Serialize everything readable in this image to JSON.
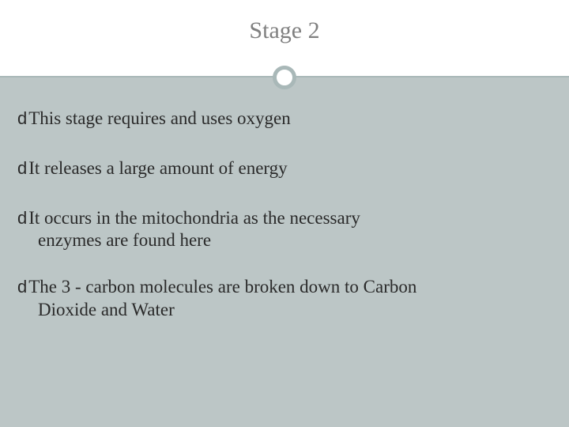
{
  "slide": {
    "title": "Stage 2",
    "title_color": "#808080",
    "title_fontsize": 30,
    "accent_color": "#a9b8b8",
    "header_bg": "#ffffff",
    "content_bg": "#bcc6c6",
    "text_color": "#2a2a2a",
    "body_fontsize": 23,
    "bullet_glyph": "d",
    "bullets": [
      {
        "text": "This stage requires and uses oxygen",
        "continuation": ""
      },
      {
        "text": "It releases a large amount of energy",
        "continuation": ""
      },
      {
        "text": "It occurs in the mitochondria as the necessary",
        "continuation": "enzymes are found here"
      },
      {
        "text": "The 3 - carbon molecules are broken down to Carbon",
        "continuation": "Dioxide and Water"
      }
    ]
  }
}
